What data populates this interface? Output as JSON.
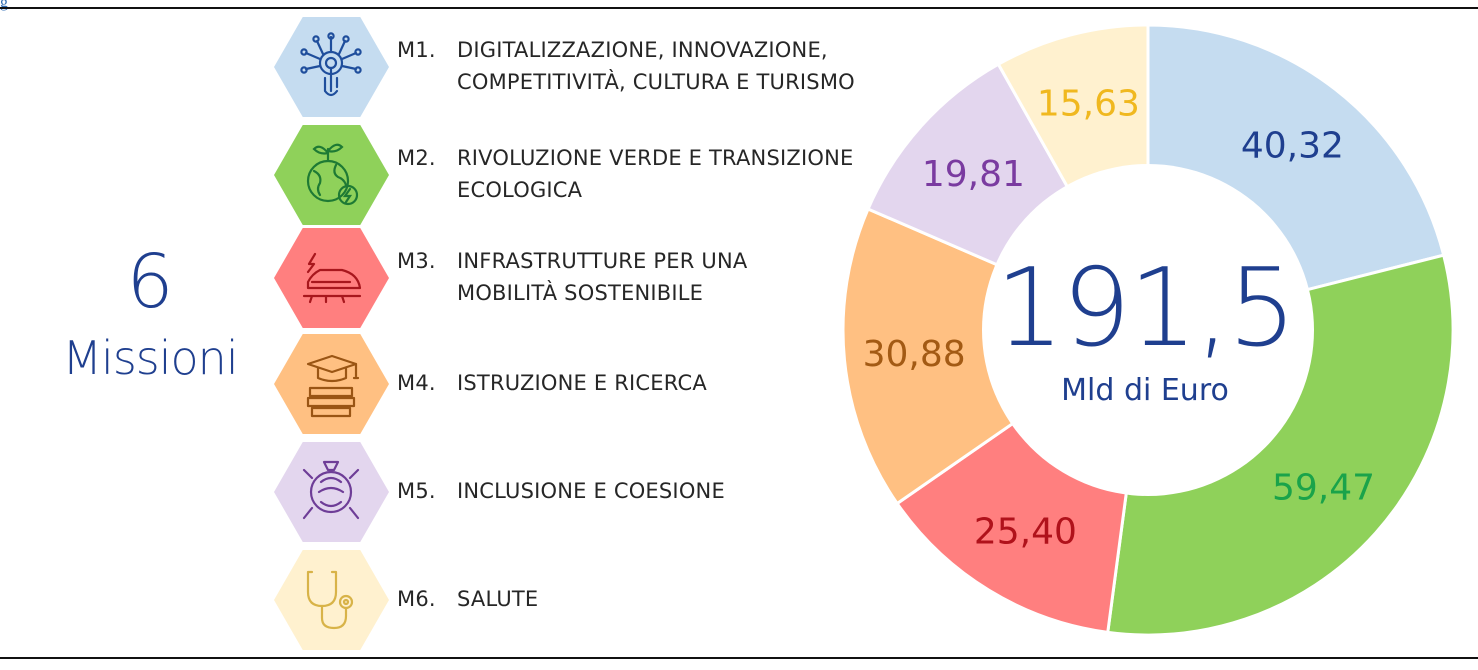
{
  "page": {
    "corner_text": "g"
  },
  "headline": {
    "number": "6",
    "word": "Missioni"
  },
  "missions": [
    {
      "code": "M1.",
      "lines": [
        "DIGITALIZZAZIONE, INNOVAZIONE,",
        "COMPETITIVITÀ, CULTURA E TURISMO"
      ],
      "color": "#c5dcf0",
      "icon": "digital-touch-icon",
      "icon_color": "#1f4e9c"
    },
    {
      "code": "M2.",
      "lines": [
        "RIVOLUZIONE VERDE E TRANSIZIONE",
        "ECOLOGICA"
      ],
      "color": "#8fd15a",
      "icon": "green-earth-icon",
      "icon_color": "#1e7a34"
    },
    {
      "code": "M3.",
      "lines": [
        "INFRASTRUTTURE PER UNA",
        "MOBILITÀ SOSTENIBILE"
      ],
      "color": "#ff7f7f",
      "icon": "train-icon",
      "icon_color": "#a8171d"
    },
    {
      "code": "M4.",
      "lines": [
        "ISTRUZIONE E RICERCA"
      ],
      "color": "#ffc082",
      "icon": "graduation-books-icon",
      "icon_color": "#9a5514"
    },
    {
      "code": "M5.",
      "lines": [
        "INCLUSIONE E COESIONE"
      ],
      "color": "#e3d6ee",
      "icon": "joined-hands-icon",
      "icon_color": "#6e3d97"
    },
    {
      "code": "M6.",
      "lines": [
        "SALUTE"
      ],
      "color": "#fff1cf",
      "icon": "stethoscope-icon",
      "icon_color": "#d8b348"
    }
  ],
  "chart_data": {
    "type": "pie",
    "donut": true,
    "center_value": "191,5",
    "center_label": "Mld di Euro",
    "center_color": "#1f3f8f",
    "start": "top",
    "direction": "clockwise",
    "slices": [
      {
        "mission": "M1",
        "value": 40.32,
        "label": "40,32",
        "color": "#c5dcf0",
        "label_color": "#1f3f8f"
      },
      {
        "mission": "M2",
        "value": 59.47,
        "label": "59,47",
        "color": "#8fd15a",
        "label_color": "#1aa34a"
      },
      {
        "mission": "M3",
        "value": 25.4,
        "label": "25,40",
        "color": "#ff7f7f",
        "label_color": "#b0121b"
      },
      {
        "mission": "M4",
        "value": 30.88,
        "label": "30,88",
        "color": "#ffc082",
        "label_color": "#a35a14"
      },
      {
        "mission": "M5",
        "value": 19.81,
        "label": "19,81",
        "color": "#e3d6ee",
        "label_color": "#7a3ba0"
      },
      {
        "mission": "M6",
        "value": 15.63,
        "label": "15,63",
        "color": "#fff1cf",
        "label_color": "#f0b81f"
      }
    ]
  }
}
